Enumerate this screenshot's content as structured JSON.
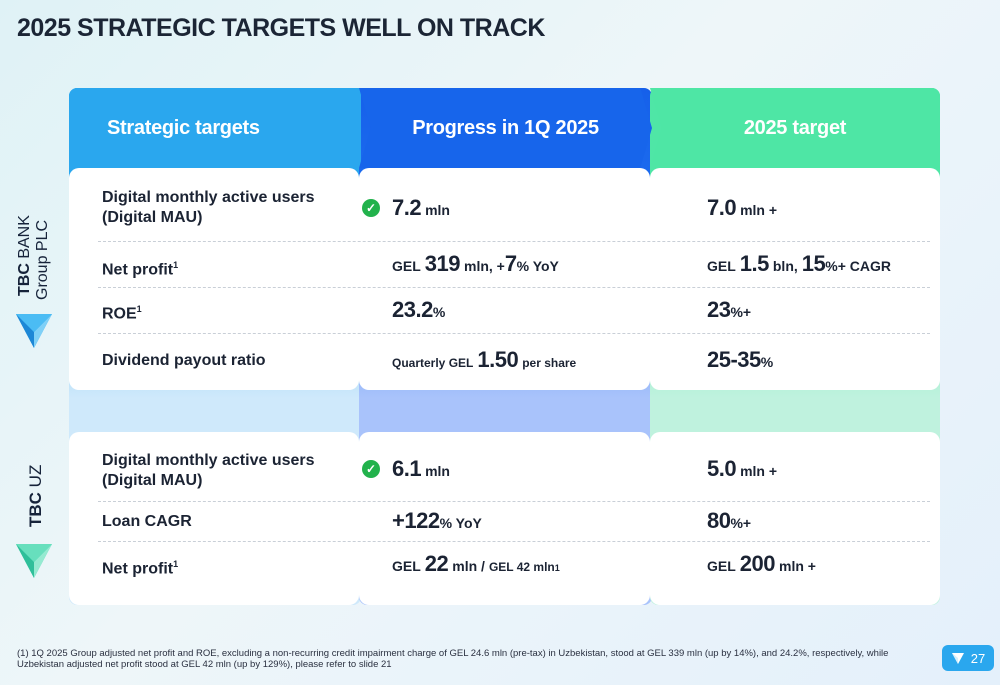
{
  "title": "2025 STRATEGIC TARGETS WELL ON TRACK",
  "headers": {
    "strategic": "Strategic targets",
    "progress": "Progress in 1Q 2025",
    "target": "2025 target"
  },
  "colors": {
    "col1": "#2aa7ee",
    "col2": "#1765eb",
    "col3": "#4ee6a5",
    "check": "#22b24c"
  },
  "side": {
    "group_bold": "TBC",
    "group_regular": "BANK",
    "group_line2": "Group PLC",
    "uz_bold": "TBC",
    "uz_regular": "UZ"
  },
  "group_rows": [
    {
      "label_line1": "Digital monthly active users",
      "label_line2": "(Digital MAU)",
      "progress": {
        "big": "7.2",
        "unit": "mln"
      },
      "target": {
        "big": "7.0",
        "unit": "mln +"
      }
    },
    {
      "label": "Net profit",
      "label_sup": "1",
      "progress": {
        "pre": "GEL",
        "big": "319",
        "mid": "mln, +",
        "big2": "7",
        "post": "% YoY"
      },
      "target": {
        "pre": "GEL",
        "big": "1.5",
        "mid": "bln,",
        "big2": "15",
        "post": "%+ CAGR"
      }
    },
    {
      "label": "ROE",
      "label_sup": "1",
      "progress": {
        "big": "23.2",
        "unit": "%"
      },
      "target": {
        "big": "23",
        "unit": "%+"
      }
    },
    {
      "label": "Dividend payout ratio",
      "progress": {
        "pre": "Quarterly GEL",
        "big": "1.50",
        "post": "per share"
      },
      "target": {
        "big": "25-35",
        "unit": "%"
      }
    }
  ],
  "uz_rows": [
    {
      "label_line1": "Digital monthly active users",
      "label_line2": "(Digital MAU)",
      "progress": {
        "big": "6.1",
        "unit": "mln"
      },
      "target": {
        "big": "5.0",
        "unit": "mln +"
      }
    },
    {
      "label": "Loan CAGR",
      "progress": {
        "big": "+122",
        "unit": "% YoY"
      },
      "target": {
        "big": "80",
        "unit": "%+"
      }
    },
    {
      "label": "Net profit",
      "label_sup": "1",
      "progress": {
        "pre": "GEL",
        "big": "22",
        "mid": "mln /",
        "small": "GEL 42 mln",
        "small_sup": "1"
      },
      "target": {
        "pre": "GEL",
        "big": "200",
        "unit": "mln +"
      }
    }
  ],
  "footnote": "(1) 1Q 2025 Group adjusted net profit and ROE, excluding a non-recurring credit impairment charge of GEL 24.6 mln (pre-tax) in Uzbekistan, stood at GEL 339 mln (up by 14%), and 24.2%, respectively, while Uzbekistan adjusted net profit stood at GEL 42 mln (up by 129%), please refer to slide 21",
  "page_number": "27"
}
